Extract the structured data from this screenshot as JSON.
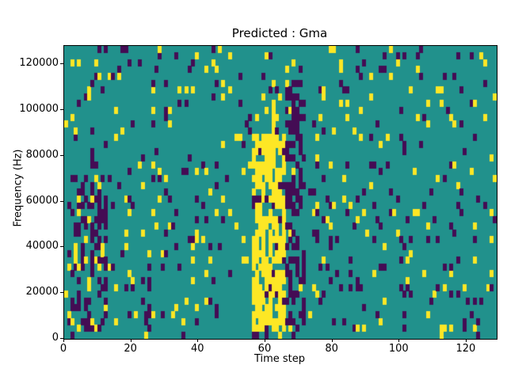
{
  "chart_data": {
    "type": "heatmap",
    "title": "Predicted : Gma",
    "xlabel": "Time step",
    "ylabel": "Frequency (Hz)",
    "xlim": [
      0,
      129
    ],
    "ylim": [
      0,
      128000
    ],
    "xticks": [
      0,
      20,
      40,
      60,
      80,
      100,
      120
    ],
    "yticks": [
      0,
      20000,
      40000,
      60000,
      80000,
      100000,
      120000
    ],
    "grid": {
      "cols": 129,
      "rows": 43
    },
    "colors": {
      "mid_teal": "#21918c",
      "low_purple": "#440c54",
      "high_yellow": "#fde725",
      "frame": "#000000"
    },
    "colormap": "viridis",
    "seed": 11,
    "base": {
      "p_low": 0.055,
      "p_high": 0.04
    },
    "regions": [
      {
        "name": "left-dark-cluster",
        "x": [
          2,
          13
        ],
        "freq": [
          0,
          72000
        ],
        "p_low": 0.28,
        "p_high": 0.1
      },
      {
        "name": "left-yellow-streak",
        "x": [
          3,
          5
        ],
        "freq": [
          30000,
          66000
        ],
        "p_low": 0.15,
        "p_high": 0.45
      },
      {
        "name": "bottom-quiet-row",
        "x": [
          0,
          129
        ],
        "freq": [
          0,
          3000
        ],
        "p_low": 0.05,
        "p_high": 0.02
      },
      {
        "name": "yellow-band",
        "x": [
          56,
          66
        ],
        "freq": [
          3000,
          88000
        ],
        "p_low": 0.06,
        "p_high": 0.72
      },
      {
        "name": "yellow-band-upper",
        "x": [
          57,
          64
        ],
        "freq": [
          88000,
          104000
        ],
        "p_low": 0.1,
        "p_high": 0.3
      },
      {
        "name": "dark-band",
        "x": [
          66,
          72
        ],
        "freq": [
          6000,
          114000
        ],
        "p_low": 0.45,
        "p_high": 0.03
      },
      {
        "name": "band-bottom-dark",
        "x": [
          56,
          65
        ],
        "freq": [
          0,
          4000
        ],
        "p_low": 0.55,
        "p_high": 0.05
      }
    ]
  }
}
